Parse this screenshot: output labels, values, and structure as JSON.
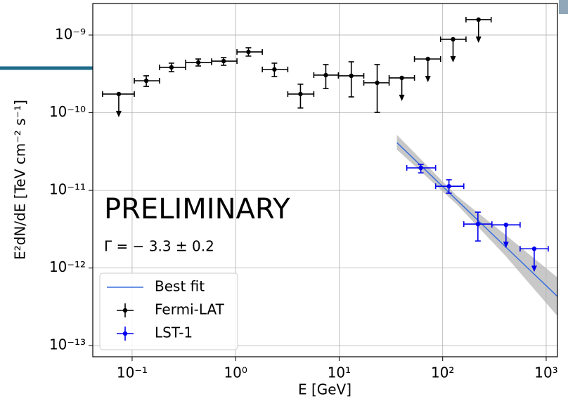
{
  "chart_data": {
    "type": "scatter",
    "x_label": "E [GeV]",
    "y_label": "E²dN/dE [TeV cm⁻² s⁻¹]",
    "annotations": [
      "PRELIMINARY",
      "Γ = − 3.3 ± 0.2"
    ],
    "annotation_colors": [
      "#ff0000",
      "#000000"
    ],
    "x_scale": "log",
    "y_scale": "log",
    "grid": true,
    "legend": "lower left",
    "xlim": [
      0.0417,
      1285
    ],
    "ylim": [
      7.2e-14,
      2.55e-09
    ],
    "xticks": [
      {
        "value": 0.1,
        "label": "10⁻¹"
      },
      {
        "value": 1,
        "label": "10⁰"
      },
      {
        "value": 10,
        "label": "10¹"
      },
      {
        "value": 100,
        "label": "10²"
      },
      {
        "value": 1000,
        "label": "10³"
      }
    ],
    "yticks": [
      {
        "value": 1e-13,
        "label": "10⁻¹³"
      },
      {
        "value": 1e-12,
        "label": "10⁻¹²"
      },
      {
        "value": 1e-11,
        "label": "10⁻¹¹"
      },
      {
        "value": 1e-10,
        "label": "10⁻¹⁰"
      },
      {
        "value": 1e-09,
        "label": "10⁻⁹"
      }
    ],
    "series": [
      {
        "name": "Best fit",
        "color": "#3a6fdc",
        "style": "line",
        "x": [
          36.1,
          1285
        ],
        "values": [
          4.12e-11,
          4.3e-13
        ],
        "band_color": "#b0b0b0",
        "band_x": [
          36.1,
          137,
          409,
          1285
        ],
        "band_low": [
          3.35e-11,
          6.6e-12,
          1.41e-12,
          2.4e-13
        ],
        "band_high": [
          5.19e-11,
          8.5e-12,
          2.64e-12,
          7.55e-13
        ]
      },
      {
        "name": "Fermi-LAT",
        "color": "#000000",
        "style": "errorbar",
        "x": [
          0.0743,
          0.137,
          0.24,
          0.436,
          0.766,
          1.33,
          2.37,
          4.23,
          7.43,
          13.1,
          23.3,
          40.3,
          72.0,
          126,
          222
        ],
        "values": [
          1.74e-10,
          2.58e-10,
          3.84e-10,
          4.44e-10,
          4.62e-10,
          6.07e-10,
          3.61e-10,
          1.74e-10,
          3.05e-10,
          2.99e-10,
          2.43e-10,
          2.81e-10,
          4.92e-10,
          8.83e-10,
          1.58e-09
        ],
        "x_low": [
          0.0518,
          0.105,
          0.184,
          0.329,
          0.587,
          1.03,
          1.81,
          3.19,
          5.69,
          9.84,
          17.3,
          30.4,
          53.4,
          95.4,
          168
        ],
        "x_high": [
          0.105,
          0.184,
          0.329,
          0.587,
          1.03,
          1.81,
          3.19,
          5.69,
          9.84,
          17.3,
          30.4,
          53.4,
          95.4,
          168,
          294
        ],
        "y_low": [
          null,
          2.18e-10,
          3.38e-10,
          4e-10,
          4.08e-10,
          5.36e-10,
          2.92e-10,
          1.15e-10,
          2.05e-10,
          1.6e-10,
          1.01e-10,
          null,
          null,
          null,
          null
        ],
        "y_high": [
          null,
          2.99e-10,
          4.35e-10,
          4.92e-10,
          5.13e-10,
          6.87e-10,
          4.35e-10,
          2.33e-10,
          4.17e-10,
          4.53e-10,
          4.17e-10,
          null,
          null,
          null,
          null
        ],
        "upper_limit": [
          true,
          false,
          false,
          false,
          false,
          false,
          false,
          false,
          false,
          false,
          false,
          true,
          true,
          true,
          true
        ]
      },
      {
        "name": "LST-1",
        "color": "#0000ee",
        "style": "errorbar",
        "x": [
          61.5,
          115,
          219,
          409,
          766
        ],
        "values": [
          1.95e-11,
          1.13e-11,
          3.68e-12,
          3.6e-12,
          1.77e-12
        ],
        "x_low": [
          45.0,
          85.5,
          160,
          299,
          560
        ],
        "x_high": [
          85.5,
          160,
          299,
          560,
          1047
        ],
        "y_low": [
          1.68e-11,
          9.2e-12,
          2.23e-12,
          null,
          null
        ],
        "y_high": [
          2.16e-11,
          1.37e-11,
          5.24e-12,
          null,
          null
        ],
        "upper_limit": [
          false,
          false,
          false,
          true,
          true
        ]
      }
    ]
  }
}
